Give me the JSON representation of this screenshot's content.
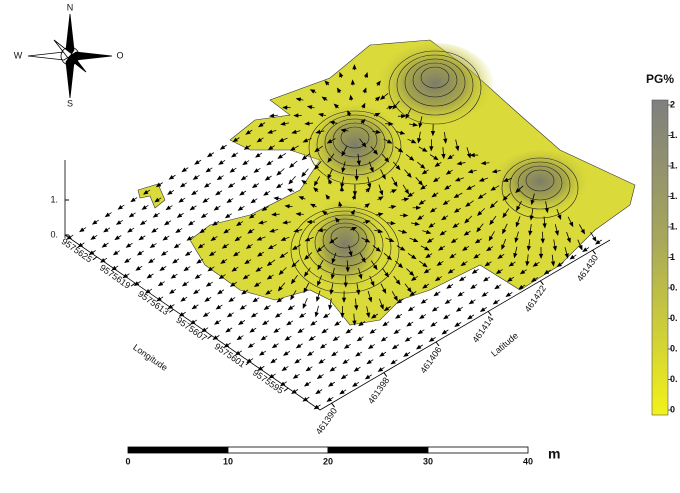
{
  "compass": {
    "north": "N",
    "south": "S",
    "west": "W",
    "east": "O"
  },
  "legend": {
    "title": "PG%",
    "labels": [
      "2",
      "1.",
      "1.",
      "1.",
      "1.",
      "1",
      "0.",
      "0.",
      "0.",
      "0.",
      "0"
    ]
  },
  "z_axis": {
    "labels": [
      "1.",
      "0."
    ]
  },
  "longitude": {
    "label": "Longitude",
    "ticks": [
      "9575625",
      "9575619",
      "9575613",
      "9575607",
      "9575601",
      "9575595"
    ]
  },
  "latitude": {
    "label": "Latitude",
    "ticks": [
      "461390",
      "461398",
      "461406",
      "461414",
      "461422",
      "461430"
    ]
  },
  "scale_bar": {
    "ticks": [
      "0",
      "10",
      "20",
      "30",
      "40"
    ],
    "unit": "m"
  }
}
